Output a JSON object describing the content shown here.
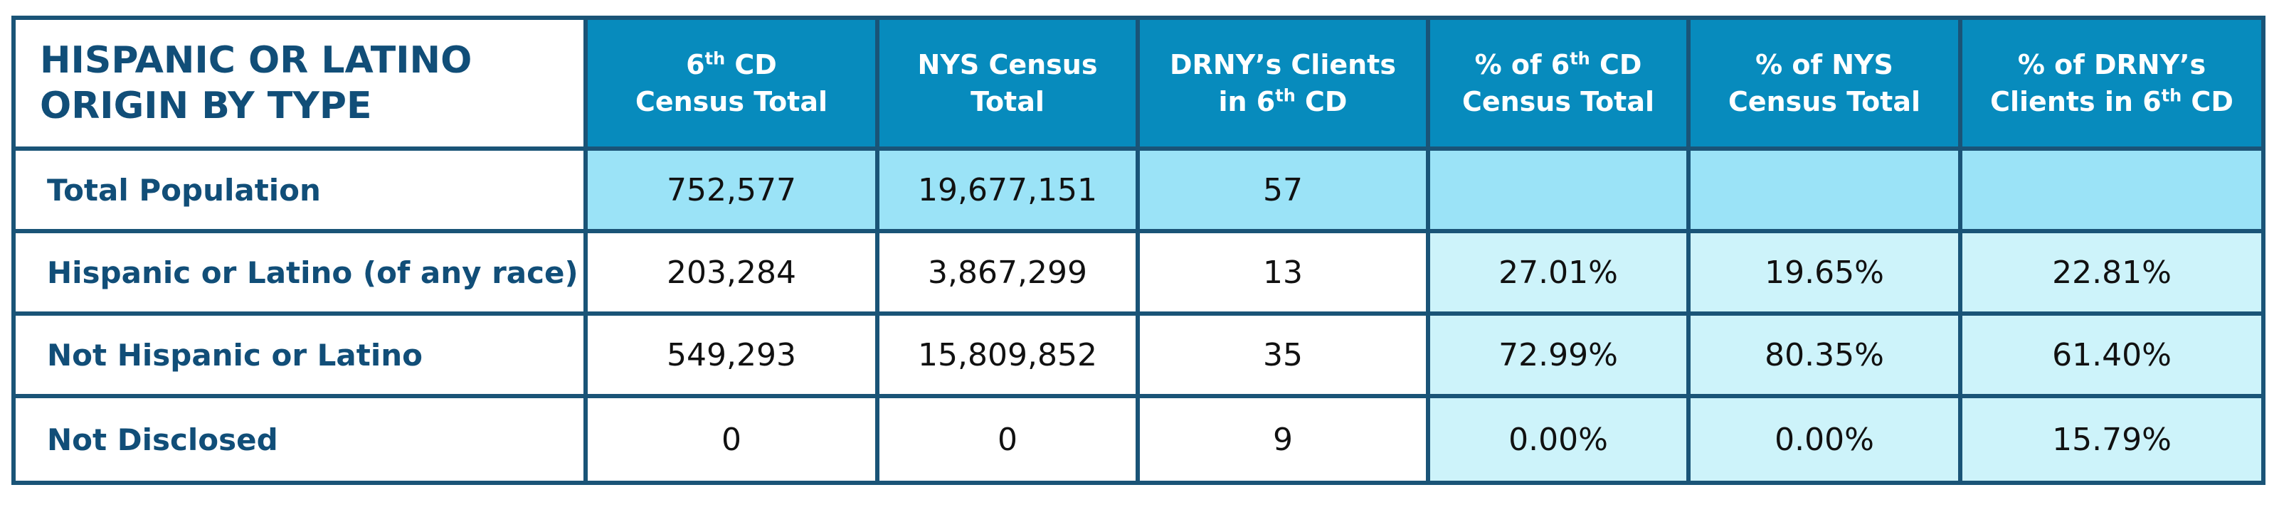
{
  "chart_data": {
    "type": "table",
    "title_lines": [
      "HISPANIC OR LATINO",
      "ORIGIN BY TYPE"
    ],
    "headers": [
      {
        "line1": "6",
        "line1_sup": "th",
        "line1_rest": " CD",
        "line2": "Census Total"
      },
      {
        "line1": "NYS Census",
        "line1_sup": "",
        "line1_rest": "",
        "line2": "Total"
      },
      {
        "line1": "DRNY’s Clients",
        "line1_sup": "",
        "line1_rest": "",
        "line2": "in 6",
        "line2_sup": "th",
        "line2_rest": " CD"
      },
      {
        "line1": "% of 6",
        "line1_sup": "th",
        "line1_rest": " CD",
        "line2": "Census Total"
      },
      {
        "line1": "% of NYS",
        "line1_sup": "",
        "line1_rest": "",
        "line2": "Census Total"
      },
      {
        "line1": "% of DRNY’s",
        "line1_sup": "",
        "line1_rest": "",
        "line2": "Clients in 6",
        "line2_sup": "th",
        "line2_rest": " CD"
      }
    ],
    "rows": [
      {
        "label": "Total Population",
        "values": [
          "752,577",
          "19,677,151",
          "57",
          "",
          "",
          ""
        ]
      },
      {
        "label": "Hispanic or Latino (of any race)",
        "values": [
          "203,284",
          "3,867,299",
          "13",
          "27.01%",
          "19.65%",
          "22.81%"
        ]
      },
      {
        "label": "Not Hispanic or Latino",
        "values": [
          "549,293",
          "15,809,852",
          "35",
          "72.99%",
          "80.35%",
          "61.40%"
        ]
      },
      {
        "label": "Not Disclosed",
        "values": [
          "0",
          "0",
          "9",
          "0.00%",
          "0.00%",
          "15.79%"
        ]
      }
    ]
  },
  "colors": {
    "border": "#1a5477",
    "header_bg": "#078bbd",
    "title_text": "#114e78",
    "highlight_row": "#9be3f7",
    "percent_cells": "#cdf3fa"
  }
}
